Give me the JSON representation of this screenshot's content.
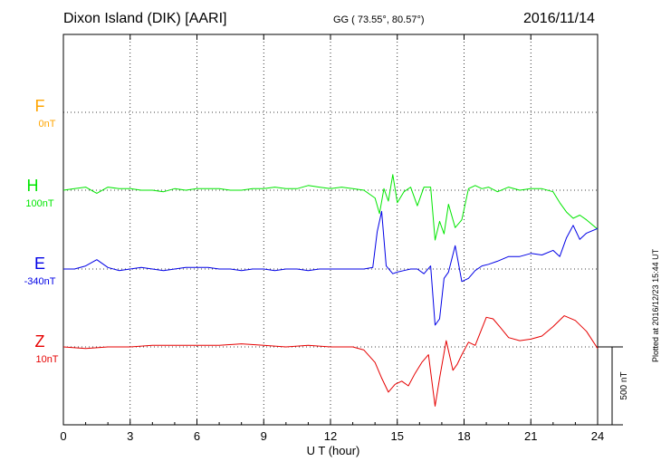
{
  "header": {
    "title": "Dixon Island (DIK)  [AARI]",
    "coords": "GG ( 73.55°,  80.57°)",
    "date": "2016/11/14"
  },
  "footer": {
    "plotted_note": "Plotted at 2016/12/23 15:44 UT"
  },
  "chart_data": {
    "type": "line",
    "xlabel": "U T (hour)",
    "xlim": [
      0,
      24
    ],
    "xticks": [
      "0",
      "3",
      "6",
      "9",
      "12",
      "15",
      "18",
      "21",
      "24"
    ],
    "scale_bar_label": "500 nT",
    "scale_bar_nT": 500,
    "grid": true,
    "series": [
      {
        "name": "F",
        "baseline_label": "0nT",
        "color": "#ffa500",
        "x": [],
        "values": []
      },
      {
        "name": "H",
        "baseline_label": "100nT",
        "color": "#00e600",
        "x": [
          0,
          0.5,
          1.0,
          1.5,
          2.0,
          2.5,
          3.0,
          3.5,
          4.0,
          4.5,
          5.0,
          5.5,
          6.0,
          6.5,
          7.0,
          7.5,
          8.0,
          8.5,
          9.0,
          9.5,
          10.0,
          10.5,
          11.0,
          11.5,
          12.0,
          12.5,
          13.0,
          13.5,
          14.0,
          14.2,
          14.4,
          14.6,
          14.8,
          15.0,
          15.3,
          15.6,
          15.9,
          16.2,
          16.5,
          16.7,
          16.9,
          17.1,
          17.3,
          17.6,
          17.9,
          18.2,
          18.5,
          18.8,
          19.1,
          19.5,
          20.0,
          20.5,
          21.0,
          21.5,
          22.0,
          22.3,
          22.6,
          22.9,
          23.2,
          23.5,
          24.0
        ],
        "values": [
          0,
          10,
          20,
          -20,
          20,
          10,
          10,
          0,
          0,
          -10,
          10,
          0,
          10,
          10,
          10,
          0,
          0,
          10,
          10,
          20,
          10,
          10,
          30,
          20,
          10,
          20,
          10,
          0,
          -50,
          -150,
          10,
          -70,
          100,
          -80,
          -10,
          20,
          -100,
          20,
          20,
          -320,
          -200,
          -280,
          -90,
          -240,
          -190,
          10,
          30,
          10,
          20,
          -10,
          20,
          0,
          10,
          10,
          -10,
          -80,
          -140,
          -180,
          -160,
          -190,
          -250
        ]
      },
      {
        "name": "E",
        "baseline_label": "-340nT",
        "color": "#0000e6",
        "x": [
          0,
          0.5,
          1.0,
          1.5,
          2.0,
          2.5,
          3.0,
          3.5,
          4.0,
          4.5,
          5.0,
          5.5,
          6.0,
          6.5,
          7.0,
          7.5,
          8.0,
          8.5,
          9.0,
          9.5,
          10.0,
          10.5,
          11.0,
          11.5,
          12.0,
          12.5,
          13.0,
          13.5,
          13.9,
          14.1,
          14.3,
          14.5,
          14.8,
          15.0,
          15.3,
          15.6,
          15.9,
          16.2,
          16.5,
          16.7,
          16.9,
          17.1,
          17.3,
          17.6,
          17.9,
          18.2,
          18.5,
          18.8,
          19.1,
          19.5,
          20.0,
          20.5,
          21.0,
          21.5,
          22.0,
          22.3,
          22.6,
          22.9,
          23.2,
          23.5,
          24.0
        ],
        "values": [
          0,
          0,
          20,
          60,
          10,
          -10,
          0,
          10,
          0,
          -10,
          0,
          10,
          10,
          10,
          0,
          0,
          -10,
          0,
          0,
          -10,
          0,
          0,
          -10,
          0,
          0,
          0,
          0,
          0,
          10,
          240,
          370,
          20,
          -30,
          -20,
          -10,
          0,
          0,
          -30,
          20,
          -360,
          -320,
          -60,
          -20,
          150,
          -80,
          -60,
          -10,
          20,
          30,
          50,
          80,
          80,
          100,
          90,
          120,
          80,
          200,
          280,
          190,
          230,
          260
        ]
      },
      {
        "name": "Z",
        "baseline_label": "10nT",
        "color": "#e60000",
        "x": [
          0,
          1.0,
          2.0,
          3.0,
          4.0,
          5.0,
          6.0,
          7.0,
          8.0,
          9.0,
          10.0,
          11.0,
          12.0,
          13.0,
          13.5,
          14.0,
          14.3,
          14.6,
          14.9,
          15.2,
          15.5,
          15.8,
          16.1,
          16.4,
          16.7,
          16.9,
          17.2,
          17.5,
          17.7,
          17.9,
          18.2,
          18.5,
          19.0,
          19.3,
          19.6,
          20.0,
          20.5,
          21.0,
          21.5,
          22.0,
          22.5,
          23.0,
          23.5,
          24.0
        ],
        "values": [
          0,
          -10,
          0,
          0,
          10,
          10,
          10,
          10,
          20,
          10,
          0,
          10,
          0,
          0,
          -20,
          -100,
          -200,
          -290,
          -240,
          -220,
          -250,
          -170,
          -100,
          -50,
          -380,
          -200,
          40,
          -150,
          -110,
          -50,
          30,
          10,
          190,
          180,
          130,
          60,
          40,
          50,
          70,
          130,
          200,
          170,
          100,
          -10
        ]
      }
    ]
  }
}
